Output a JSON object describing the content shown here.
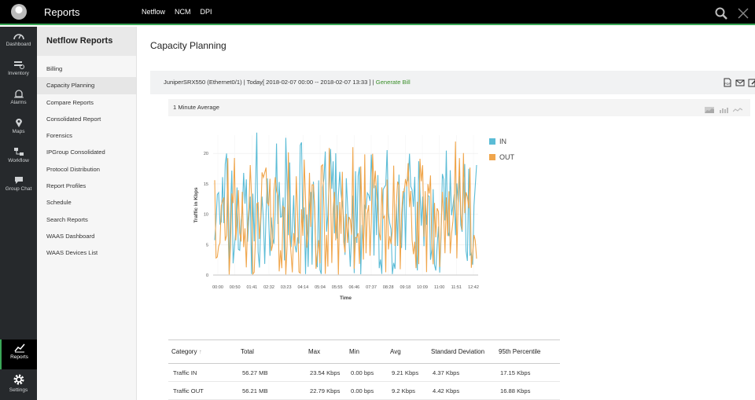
{
  "app": {
    "title": "Reports",
    "nav": [
      "Netflow",
      "NCM",
      "DPI"
    ]
  },
  "rail": [
    {
      "label": "Dashboard",
      "icon": "dashboard-icon"
    },
    {
      "label": "Inventory",
      "icon": "inventory-icon"
    },
    {
      "label": "Alarms",
      "icon": "alarm-icon"
    },
    {
      "label": "Maps",
      "icon": "map-pin-icon"
    },
    {
      "label": "Workflow",
      "icon": "workflow-icon"
    },
    {
      "label": "Group Chat",
      "icon": "chat-icon"
    },
    {
      "label": "Reports",
      "icon": "reports-icon"
    },
    {
      "label": "Settings",
      "icon": "gear-icon"
    }
  ],
  "subnav": {
    "title": "Netflow Reports",
    "items": [
      "Billing",
      "Capacity Planning",
      "Compare Reports",
      "Consolidated Report",
      "Forensics",
      "IPGroup Consolidated",
      "Protocol Distribution",
      "Report Profiles",
      "Schedule",
      "Search Reports",
      "WAAS Dashboard",
      "WAAS Devices List"
    ],
    "active": "Capacity Planning"
  },
  "page": {
    "title": "Capacity Planning",
    "info": "JuniperSRX550 (Ethernet0/1) | Today[ 2018-02-07 00:00 -- 2018-02-07 13:33 ] |",
    "generate_bill": "Generate Bill",
    "avg_label": "1 Minute Average"
  },
  "colors": {
    "in": "#5bbcd6",
    "out": "#f0a64c",
    "accent": "#3aa757"
  },
  "chart_data": {
    "type": "line",
    "title": "1 Minute Average",
    "xlabel": "Time",
    "ylabel": "Traffic in Kbps",
    "ylim": [
      0,
      23
    ],
    "yticks": [
      0,
      5,
      10,
      15,
      20
    ],
    "categories": [
      "00:00",
      "00:50",
      "01:41",
      "02:32",
      "03:23",
      "04:14",
      "05:04",
      "05:55",
      "06:46",
      "07:37",
      "08:28",
      "09:18",
      "10:09",
      "11:00",
      "11:51",
      "12:42"
    ],
    "grid": true,
    "legend_position": "right",
    "series": [
      {
        "name": "IN",
        "summary": {
          "min": 0.0,
          "avg": 9.21,
          "max": 23.54
        }
      },
      {
        "name": "OUT",
        "summary": {
          "min": 0.0,
          "avg": 9.2,
          "max": 22.79
        }
      }
    ]
  },
  "table": {
    "headers": [
      "Category",
      "Total",
      "Max",
      "Min",
      "Avg",
      "Standard Deviation",
      "95th Percentile"
    ],
    "rows": [
      [
        "Traffic IN",
        "56.27 MB",
        "23.54 Kbps",
        "0.00 bps",
        "9.21 Kbps",
        "4.37 Kbps",
        "17.15 Kbps"
      ],
      [
        "Traffic OUT",
        "56.21 MB",
        "22.79 Kbps",
        "0.00 bps",
        "9.2 Kbps",
        "4.42 Kbps",
        "16.88 Kbps"
      ]
    ]
  }
}
